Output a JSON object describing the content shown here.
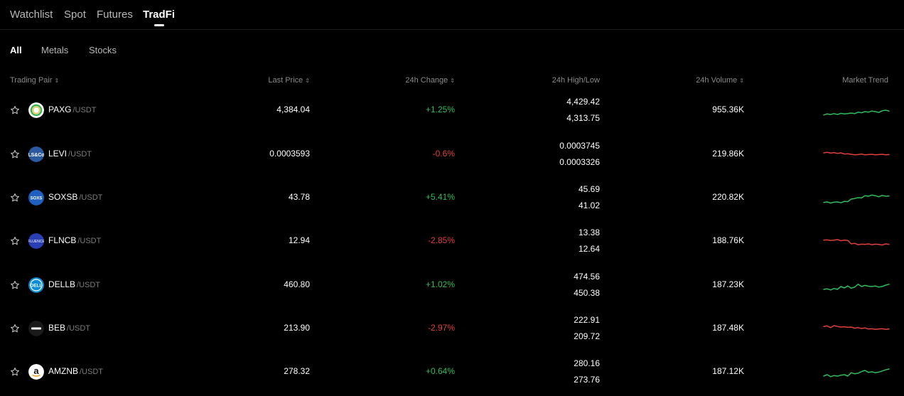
{
  "top_tabs": {
    "items": [
      {
        "label": "Watchlist"
      },
      {
        "label": "Spot"
      },
      {
        "label": "Futures"
      },
      {
        "label": "TradFi"
      }
    ],
    "active": "TradFi"
  },
  "sub_tabs": {
    "items": [
      {
        "label": "All"
      },
      {
        "label": "Metals"
      },
      {
        "label": "Stocks"
      }
    ],
    "active": "All"
  },
  "table": {
    "headers": {
      "pair": "Trading Pair",
      "last_price": "Last Price",
      "change": "24h Change",
      "high_low": "24h High/Low",
      "volume": "24h Volume",
      "trend": "Market Trend"
    },
    "sort_icon": "sort-icon",
    "colors": {
      "up": "#2ebd5a",
      "down": "#e0403c"
    },
    "rows": [
      {
        "symbol": "PAXG",
        "quote": "/USDT",
        "price": "4,384.04",
        "change": "+1.25%",
        "direction": "up",
        "high": "4,429.42",
        "low": "4,313.75",
        "volume": "955.36K",
        "logo_icon": "paxg-logo-icon"
      },
      {
        "symbol": "LEVI",
        "quote": "/USDT",
        "price": "0.0003593",
        "change": "-0.6%",
        "direction": "down",
        "high": "0.0003745",
        "low": "0.0003326",
        "volume": "219.86K",
        "logo_icon": "levi-logo-icon"
      },
      {
        "symbol": "SOXSB",
        "quote": "/USDT",
        "price": "43.78",
        "change": "+5.41%",
        "direction": "up",
        "high": "45.69",
        "low": "41.02",
        "volume": "220.82K",
        "logo_icon": "soxsb-logo-icon"
      },
      {
        "symbol": "FLNCB",
        "quote": "/USDT",
        "price": "12.94",
        "change": "-2.85%",
        "direction": "down",
        "high": "13.38",
        "low": "12.64",
        "volume": "188.76K",
        "logo_icon": "flncb-logo-icon"
      },
      {
        "symbol": "DELLB",
        "quote": "/USDT",
        "price": "460.80",
        "change": "+1.02%",
        "direction": "up",
        "high": "474.56",
        "low": "450.38",
        "volume": "187.23K",
        "logo_icon": "dell-logo-icon"
      },
      {
        "symbol": "BEB",
        "quote": "/USDT",
        "price": "213.90",
        "change": "-2.97%",
        "direction": "down",
        "high": "222.91",
        "low": "209.72",
        "volume": "187.48K",
        "logo_icon": "beb-logo-icon"
      },
      {
        "symbol": "AMZNB",
        "quote": "/USDT",
        "price": "278.32",
        "change": "+0.64%",
        "direction": "up",
        "high": "280.16",
        "low": "273.76",
        "volume": "187.12K",
        "logo_icon": "amazon-logo-icon"
      }
    ]
  }
}
